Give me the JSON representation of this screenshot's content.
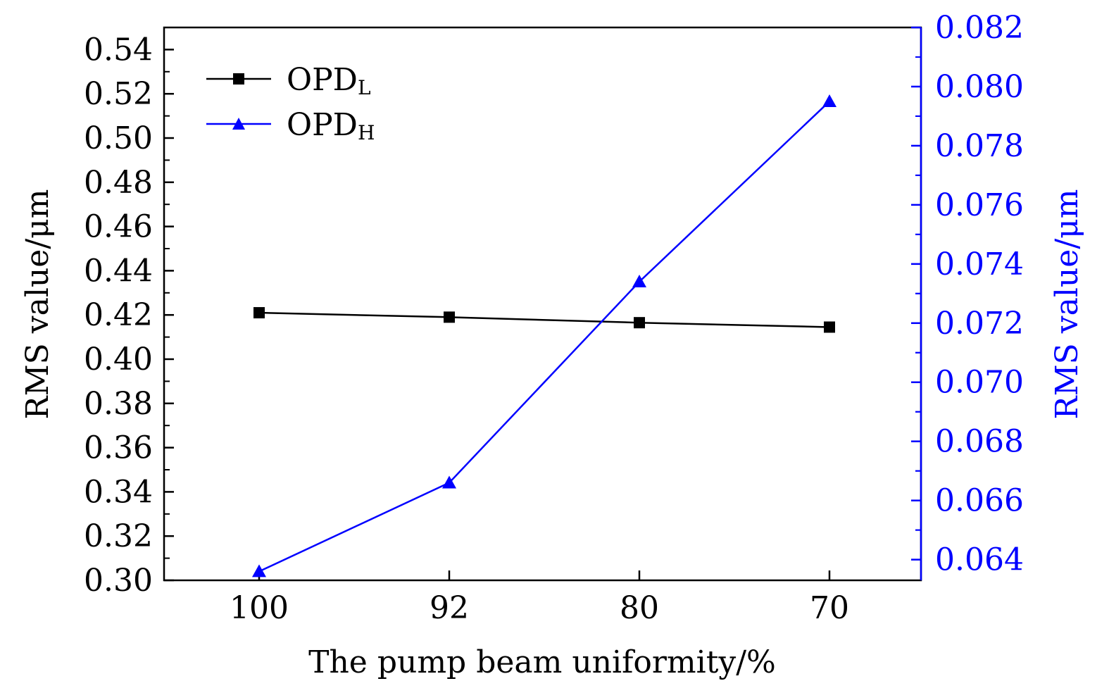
{
  "chart_data": {
    "type": "line",
    "xlabel": "The pump beam uniformity/%",
    "ylabel_left": "RMS value/μm",
    "ylabel_right": "RMS value/μm",
    "categories": [
      "100",
      "92",
      "80",
      "70"
    ],
    "ylim_left": [
      0.3,
      0.55
    ],
    "ylim_right": [
      0.0633,
      0.082
    ],
    "yticks_left": [
      "0.30",
      "0.32",
      "0.34",
      "0.36",
      "0.38",
      "0.40",
      "0.42",
      "0.44",
      "0.46",
      "0.48",
      "0.50",
      "0.52",
      "0.54"
    ],
    "yticks_right": [
      "0.064",
      "0.066",
      "0.068",
      "0.070",
      "0.072",
      "0.074",
      "0.076",
      "0.078",
      "0.080",
      "0.082"
    ],
    "series": [
      {
        "name": "OPD",
        "subscript": "L",
        "axis": "left",
        "marker": "square",
        "color": "#000000",
        "values": [
          0.421,
          0.419,
          0.4165,
          0.4145
        ]
      },
      {
        "name": "OPD",
        "subscript": "H",
        "axis": "right",
        "marker": "triangle",
        "color": "#0000ff",
        "values": [
          0.0636,
          0.0666,
          0.0734,
          0.0795
        ]
      }
    ],
    "legend_position": "top-left",
    "grid": false
  }
}
